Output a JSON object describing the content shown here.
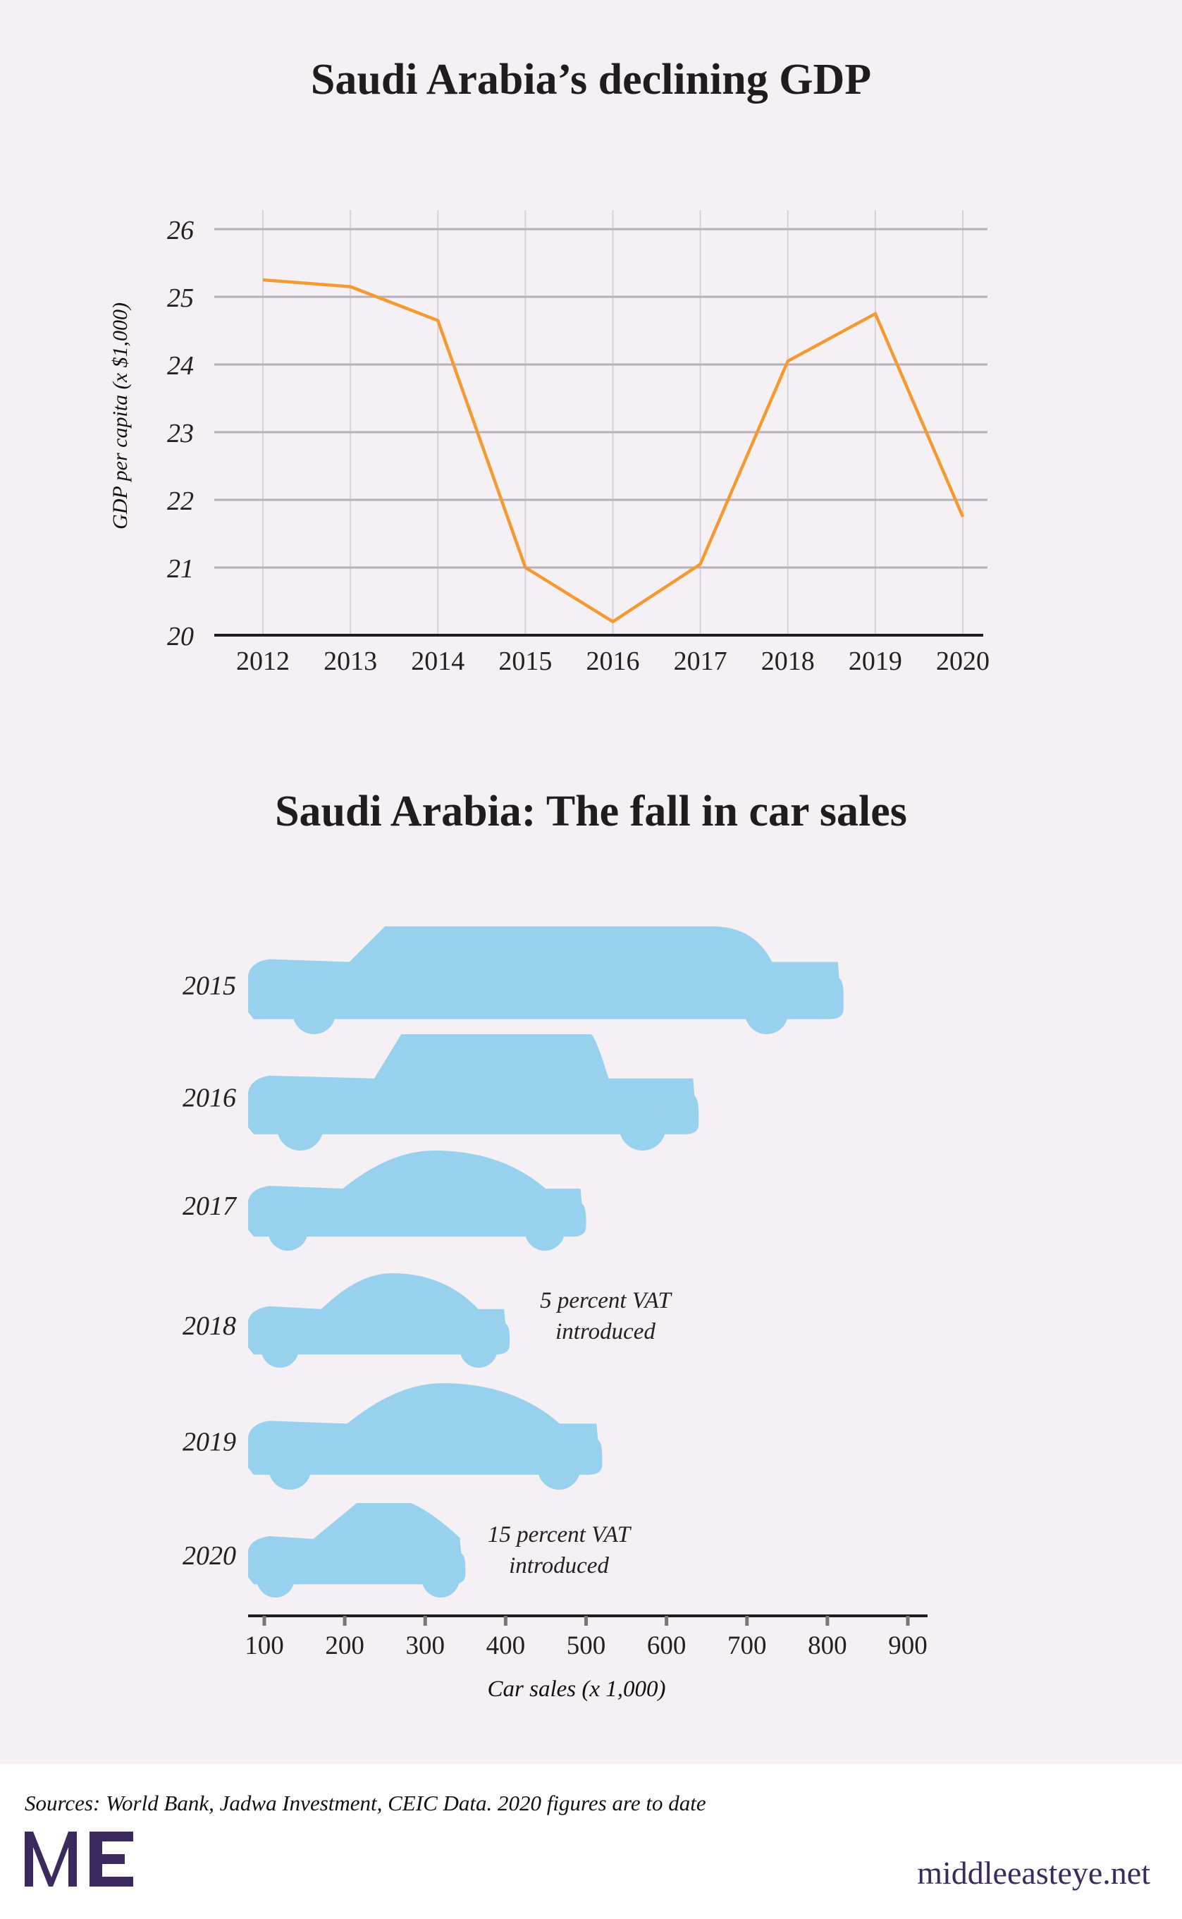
{
  "chart_data": [
    {
      "type": "line",
      "title": "Saudi Arabia’s declining GDP",
      "ylabel": "GDP per capita (x $1,000)",
      "xlabel": "",
      "x": [
        2012,
        2013,
        2014,
        2015,
        2016,
        2017,
        2018,
        2019,
        2020
      ],
      "values": [
        25.25,
        25.15,
        24.65,
        21.0,
        20.2,
        21.05,
        24.05,
        24.75,
        21.75
      ],
      "ylim": [
        20,
        26
      ],
      "yticks": [
        20,
        21,
        22,
        23,
        24,
        25,
        26
      ],
      "grid": true,
      "line_color": "#f59a33"
    },
    {
      "type": "bar",
      "orientation": "horizontal",
      "mark": "car-silhouette",
      "title": "Saudi Arabia: The fall in car sales",
      "xlabel": "Car sales (x 1,000)",
      "categories": [
        "2015",
        "2016",
        "2017",
        "2018",
        "2019",
        "2020"
      ],
      "values": [
        820,
        640,
        500,
        405,
        520,
        350
      ],
      "xticks": [
        100,
        200,
        300,
        400,
        500,
        600,
        700,
        800,
        900
      ],
      "bar_color": "#98d1ee",
      "annotations": [
        {
          "category": "2018",
          "lines": [
            "5 percent VAT",
            "introduced"
          ]
        },
        {
          "category": "2020",
          "lines": [
            "15 percent VAT",
            "introduced"
          ]
        }
      ]
    }
  ],
  "footer": {
    "sources": "Sources: World Bank, Jadwa Investment, CEIC Data. 2020 figures are to date",
    "logo_text": "MEE",
    "site": "middleeasteye.net",
    "brand_color": "#3a2a5e"
  }
}
